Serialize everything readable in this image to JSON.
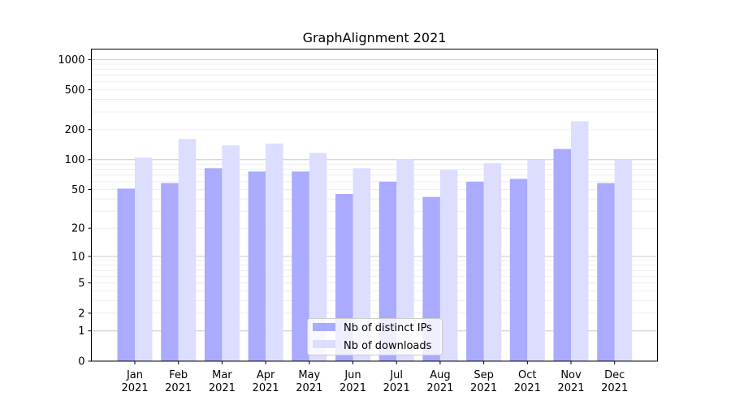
{
  "chart_data": {
    "type": "bar",
    "title": "GraphAlignment 2021",
    "xlabel": "",
    "ylabel": "",
    "yscale": "log(1+y)",
    "ylim": [
      0,
      1270
    ],
    "yticks": [
      0,
      1,
      2,
      5,
      10,
      20,
      50,
      100,
      200,
      500,
      1000
    ],
    "grid": true,
    "legend_position": "lower center",
    "categories": [
      "Jan\n2021",
      "Feb\n2021",
      "Mar\n2021",
      "Apr\n2021",
      "May\n2021",
      "Jun\n2021",
      "Jul\n2021",
      "Aug\n2021",
      "Sep\n2021",
      "Oct\n2021",
      "Nov\n2021",
      "Dec\n2021"
    ],
    "series": [
      {
        "name": "Nb of distinct IPs",
        "color": "#aaaaff",
        "values": [
          51,
          58,
          82,
          76,
          76,
          45,
          60,
          42,
          60,
          64,
          128,
          58
        ]
      },
      {
        "name": "Nb of downloads",
        "color": "#ddddff",
        "values": [
          105,
          161,
          139,
          145,
          117,
          82,
          101,
          79,
          92,
          99,
          242,
          100
        ]
      }
    ]
  }
}
